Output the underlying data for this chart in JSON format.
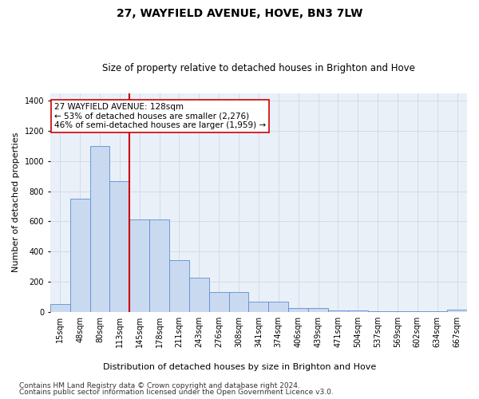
{
  "title": "27, WAYFIELD AVENUE, HOVE, BN3 7LW",
  "subtitle": "Size of property relative to detached houses in Brighton and Hove",
  "xlabel": "Distribution of detached houses by size in Brighton and Hove",
  "ylabel": "Number of detached properties",
  "categories": [
    "15sqm",
    "48sqm",
    "80sqm",
    "113sqm",
    "145sqm",
    "178sqm",
    "211sqm",
    "243sqm",
    "276sqm",
    "308sqm",
    "341sqm",
    "374sqm",
    "406sqm",
    "439sqm",
    "471sqm",
    "504sqm",
    "537sqm",
    "569sqm",
    "602sqm",
    "634sqm",
    "667sqm"
  ],
  "bar_values": [
    52,
    748,
    1098,
    865,
    615,
    615,
    345,
    225,
    130,
    130,
    65,
    70,
    25,
    25,
    10,
    10,
    5,
    5,
    2,
    2,
    15
  ],
  "bar_color": "#c9d9f0",
  "bar_edge_color": "#5b8fcf",
  "vline_x": 3.47,
  "vline_color": "#cc0000",
  "annotation_text": "27 WAYFIELD AVENUE: 128sqm\n← 53% of detached houses are smaller (2,276)\n46% of semi-detached houses are larger (1,959) →",
  "annotation_box_color": "#ffffff",
  "annotation_box_edge": "#cc0000",
  "ylim": [
    0,
    1450
  ],
  "yticks": [
    0,
    200,
    400,
    600,
    800,
    1000,
    1200,
    1400
  ],
  "grid_color": "#d0d8e8",
  "ax_bg_color": "#eaf0f8",
  "background_color": "#ffffff",
  "footer1": "Contains HM Land Registry data © Crown copyright and database right 2024.",
  "footer2": "Contains public sector information licensed under the Open Government Licence v3.0.",
  "title_fontsize": 10,
  "subtitle_fontsize": 8.5,
  "xlabel_fontsize": 8,
  "ylabel_fontsize": 8,
  "tick_fontsize": 7,
  "footer_fontsize": 6.5,
  "ann_fontsize": 7.5
}
